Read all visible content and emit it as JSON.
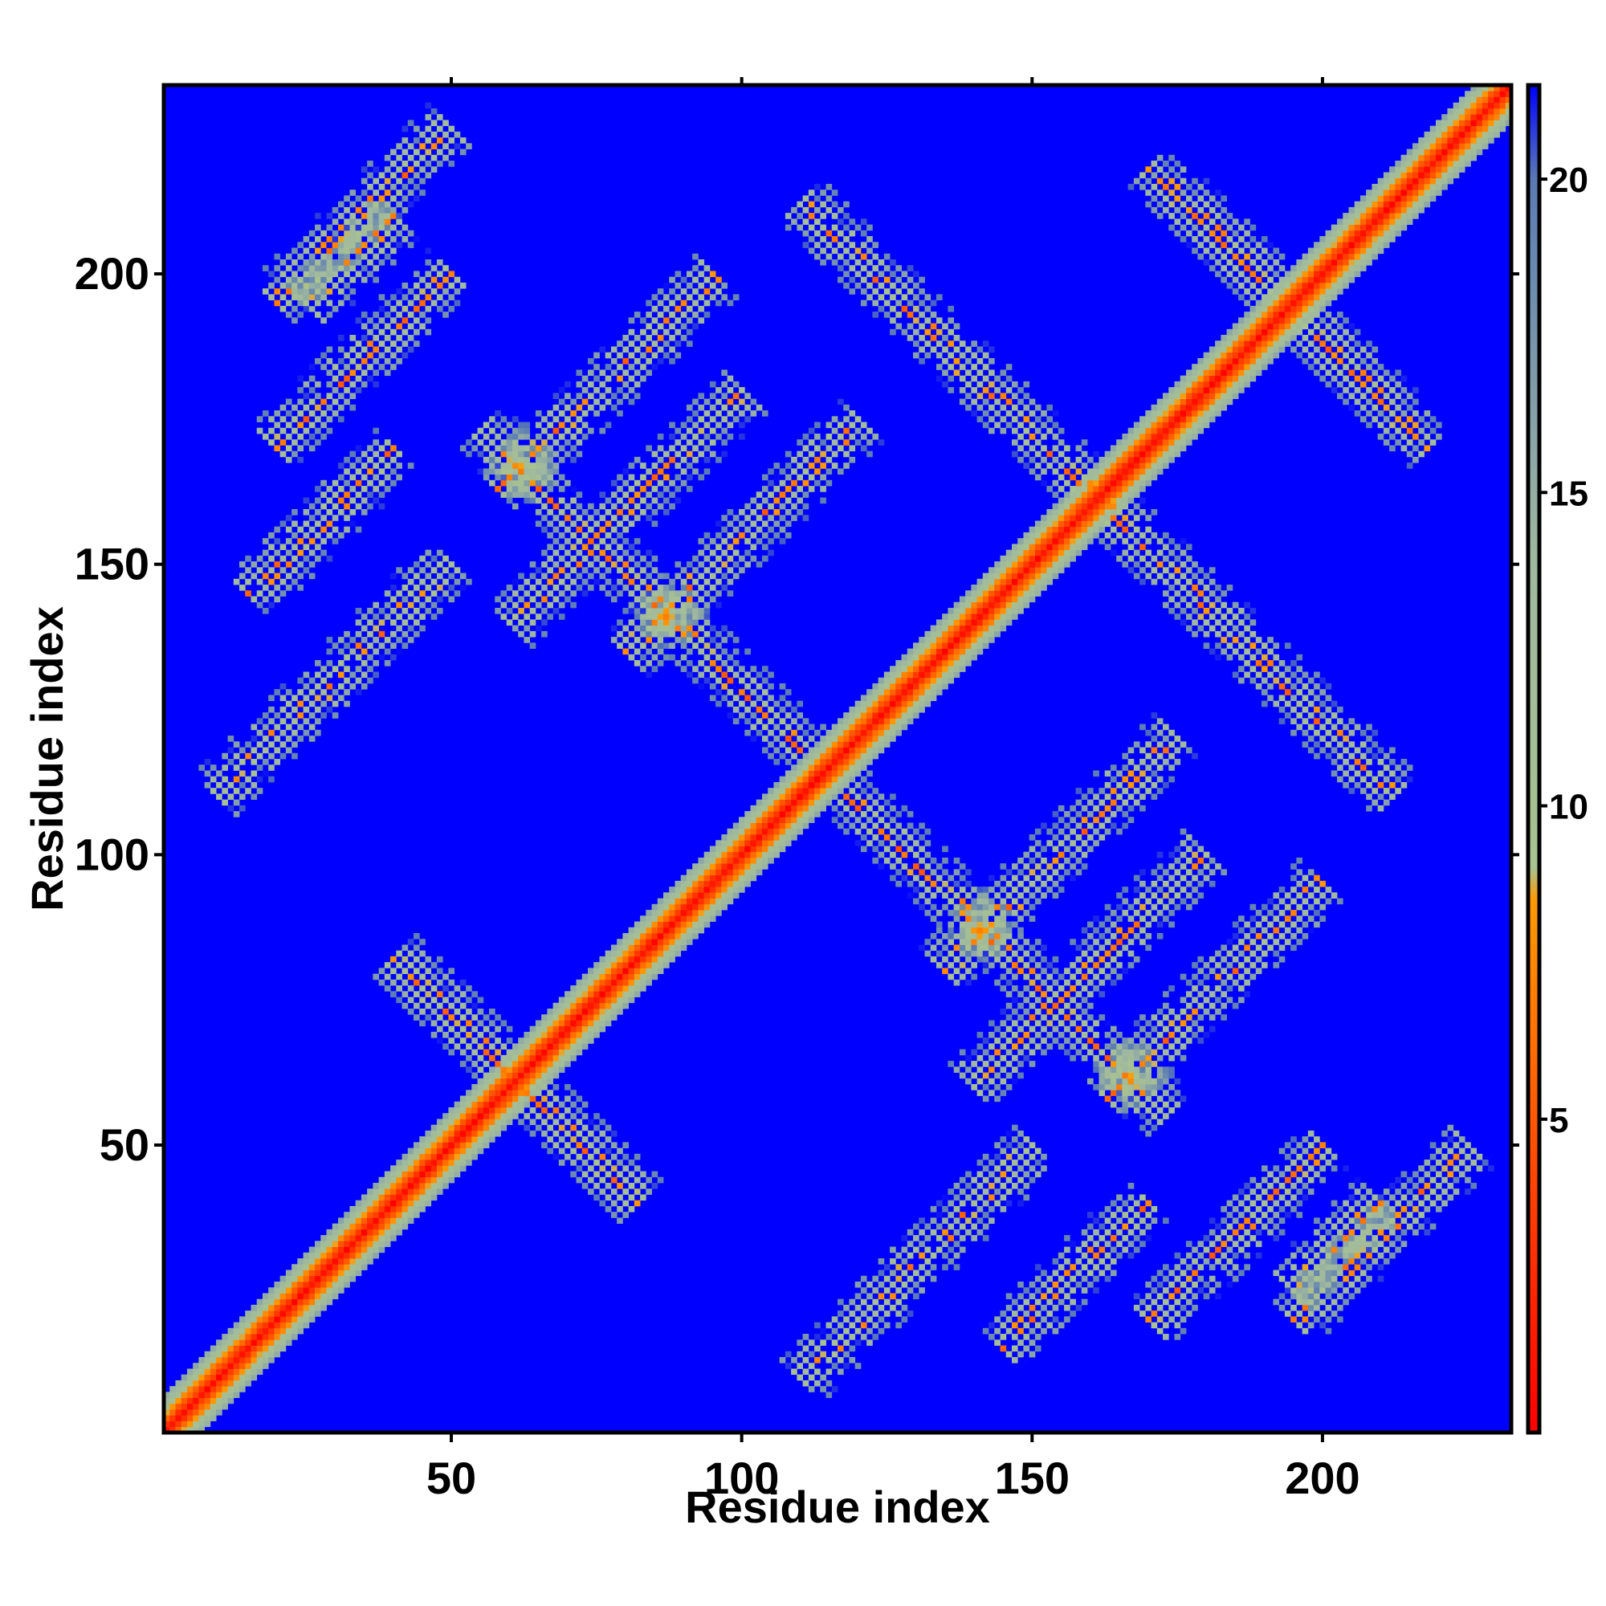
{
  "chart_data": {
    "type": "heatmap",
    "title": "",
    "xlabel": "Residue index",
    "ylabel": "Residue index",
    "n_residues": 232,
    "xlim": [
      1,
      232
    ],
    "ylim": [
      1,
      232
    ],
    "x_ticks": [
      50,
      100,
      150,
      200
    ],
    "y_ticks": [
      50,
      100,
      150,
      200
    ],
    "colorbar": {
      "range": [
        0,
        21.5
      ],
      "ticks": [
        5,
        10,
        15,
        20
      ],
      "stops": [
        {
          "value": 0,
          "color": "#ff0000"
        },
        {
          "value": 4,
          "color": "#ff4400"
        },
        {
          "value": 8.5,
          "color": "#ff9a00"
        },
        {
          "value": 9,
          "color": "#a8c290"
        },
        {
          "value": 14,
          "color": "#9fb8a0"
        },
        {
          "value": 20,
          "color": "#5a7ab5"
        },
        {
          "value": 21.5,
          "color": "#0000ff"
        }
      ],
      "cutoff_color": "#0000ff"
    },
    "contact_bands": [
      {
        "kind": "diagonal",
        "width": 6
      },
      {
        "kind": "antidiagonal",
        "sum": 122,
        "from": 40,
        "to": 82
      },
      {
        "kind": "antidiagonal",
        "sum": 228,
        "from": 55,
        "to": 110
      },
      {
        "kind": "antidiagonal",
        "sum": 322,
        "from": 110,
        "to": 166
      },
      {
        "kind": "antidiagonal",
        "sum": 388,
        "from": 170,
        "to": 210
      },
      {
        "kind": "parallel",
        "offset": 170,
        "from": 25,
        "to": 40
      },
      {
        "kind": "parallel",
        "offset": 130,
        "from": 15,
        "to": 40
      },
      {
        "kind": "parallel",
        "offset": 105,
        "from": 58,
        "to": 95
      },
      {
        "kind": "parallel",
        "offset": 80,
        "from": 60,
        "to": 100
      },
      {
        "kind": "parallel",
        "offset": 55,
        "from": 80,
        "to": 120
      },
      {
        "kind": "parallel",
        "offset": -100,
        "from": 110,
        "to": 150
      },
      {
        "kind": "parallel",
        "offset": -150,
        "from": 170,
        "to": 200
      },
      {
        "kind": "parallel",
        "offset": -175,
        "from": 195,
        "to": 225
      }
    ]
  }
}
